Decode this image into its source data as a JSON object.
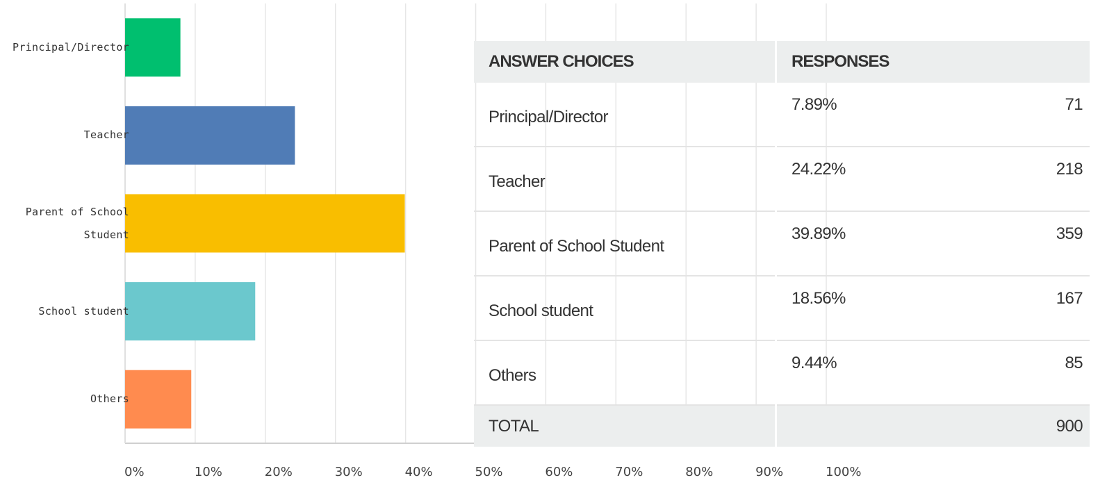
{
  "chart_data": {
    "type": "hbar",
    "categories": [
      "Principal/Director",
      "Teacher",
      "Parent of School Student",
      "School student",
      "Others"
    ],
    "values": [
      7.89,
      24.22,
      39.89,
      18.56,
      9.44
    ],
    "colors": [
      "#00bf6f",
      "#507cb6",
      "#f9be00",
      "#6bc8cd",
      "#ff8b4f"
    ],
    "xlim": [
      0,
      100
    ],
    "xticks": [
      {
        "value": 0,
        "label": "0%"
      },
      {
        "value": 10,
        "label": "10%"
      },
      {
        "value": 20,
        "label": "20%"
      },
      {
        "value": 30,
        "label": "30%"
      },
      {
        "value": 40,
        "label": "40%"
      },
      {
        "value": 50,
        "label": "50%"
      },
      {
        "value": 60,
        "label": "60%"
      },
      {
        "value": 70,
        "label": "70%"
      },
      {
        "value": 80,
        "label": "80%"
      },
      {
        "value": 90,
        "label": "90%"
      },
      {
        "value": 100,
        "label": "100%"
      }
    ],
    "grid": true
  },
  "table": {
    "headers": [
      "ANSWER CHOICES",
      "RESPONSES"
    ],
    "rows": [
      [
        "Principal/Director",
        "7.89%",
        "71"
      ],
      [
        "Teacher",
        "24.22%",
        "218"
      ],
      [
        "Parent of School Student",
        "39.89%",
        "359"
      ],
      [
        "School student",
        "18.56%",
        "167"
      ],
      [
        "Others",
        "9.44%",
        "85"
      ]
    ],
    "total": [
      "TOTAL",
      "900"
    ]
  }
}
